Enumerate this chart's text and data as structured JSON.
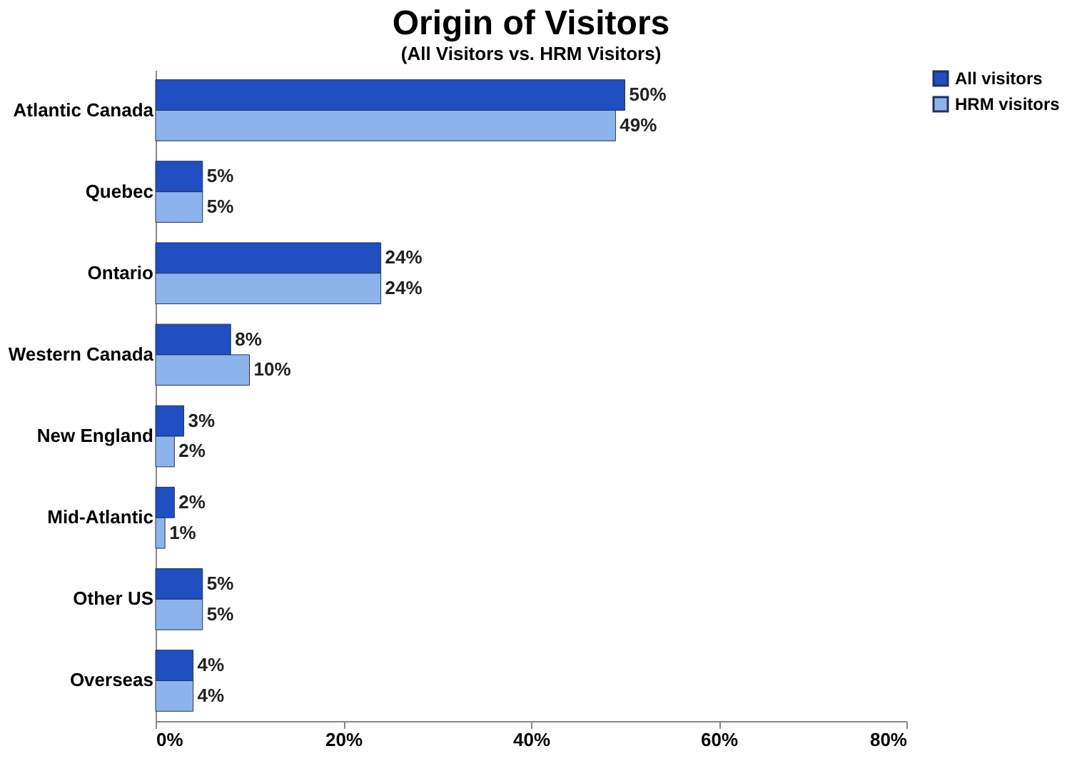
{
  "chart_data": {
    "type": "bar",
    "orientation": "horizontal",
    "title": "Origin of Visitors",
    "subtitle": "(All Visitors vs. HRM Visitors)",
    "categories": [
      "Atlantic Canada",
      "Quebec",
      "Ontario",
      "Western Canada",
      "New England",
      "Mid-Atlantic",
      "Other US",
      "Overseas"
    ],
    "series": [
      {
        "name": "All visitors",
        "color": "#1f4fc0",
        "values": [
          50,
          5,
          24,
          8,
          3,
          2,
          5,
          4
        ],
        "value_labels": [
          "50%",
          "5%",
          "24%",
          "8%",
          "3%",
          "2%",
          "5%",
          "4%"
        ]
      },
      {
        "name": "HRM visitors",
        "color": "#8cb4ea",
        "values": [
          49,
          5,
          24,
          10,
          2,
          1,
          5,
          4
        ],
        "value_labels": [
          "49%",
          "5%",
          "24%",
          "10%",
          "2%",
          "1%",
          "5%",
          "4%"
        ]
      }
    ],
    "xlim": [
      0,
      80
    ],
    "xticks": [
      {
        "value": 0,
        "label": "0%"
      },
      {
        "value": 20,
        "label": "20%"
      },
      {
        "value": 40,
        "label": "40%"
      },
      {
        "value": 60,
        "label": "60%"
      },
      {
        "value": 80,
        "label": "80%"
      }
    ],
    "grid": false,
    "legend": "right"
  }
}
